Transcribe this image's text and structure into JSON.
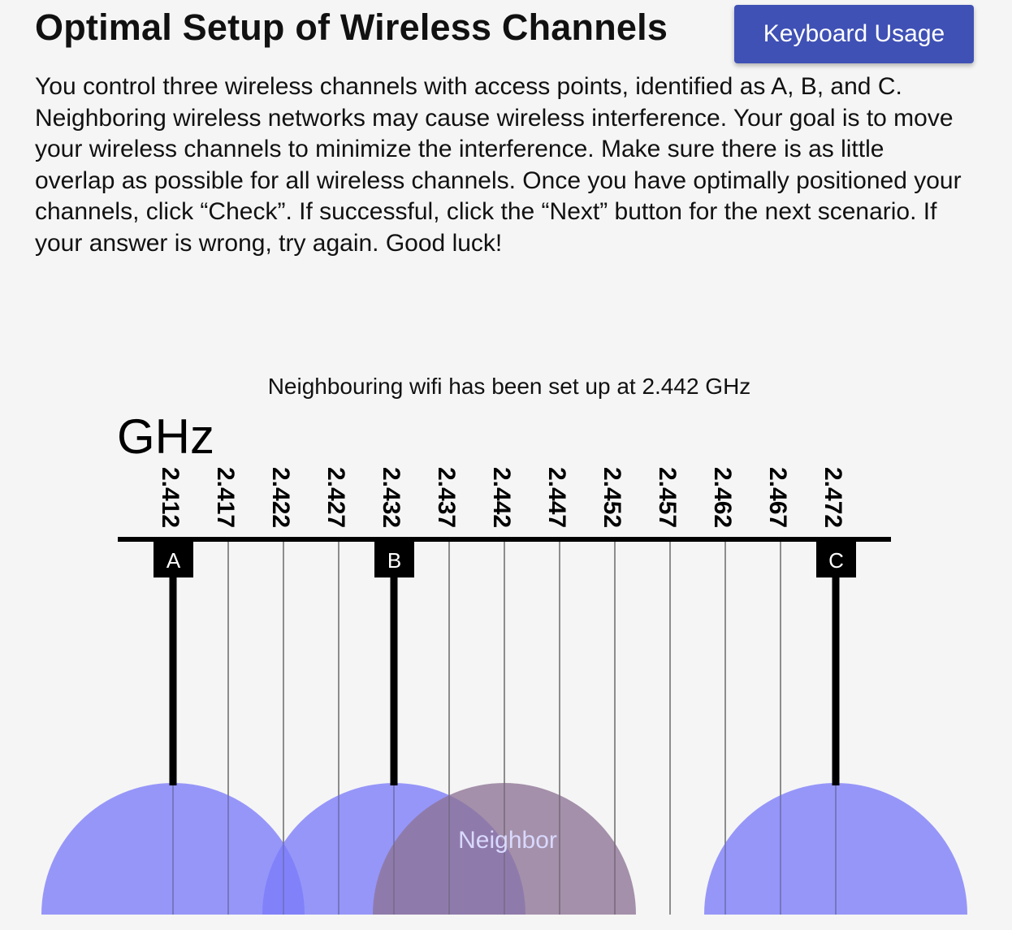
{
  "header": {
    "title": "Optimal Setup of Wireless Channels",
    "keyboard_button_label": "Keyboard Usage"
  },
  "instructions": "You control three wireless channels with access points, identified as A, B, and C. Neighboring wireless networks may cause wireless interference. Your goal is to move your wireless channels to minimize the interference. Make sure there is as little overlap as possible for all wireless channels. Once you have optimally positioned your channels, click “Check”. If successful, click the “Next” button for the next scenario. If your answer is wrong, try again. Good luck!",
  "status_message": "Neighbouring wifi has been set up at 2.442 GHz",
  "diagram": {
    "unit_label": "GHz",
    "frequencies": [
      "2.412",
      "2.417",
      "2.422",
      "2.427",
      "2.432",
      "2.437",
      "2.442",
      "2.447",
      "2.452",
      "2.457",
      "2.462",
      "2.467",
      "2.472"
    ],
    "channels": [
      {
        "label": "A",
        "frequency": "2.412"
      },
      {
        "label": "B",
        "frequency": "2.432"
      },
      {
        "label": "C",
        "frequency": "2.472"
      }
    ],
    "neighbor": {
      "label": "Neighbor",
      "frequency": "2.442"
    },
    "colors": {
      "channel_fill": "#7b7bfa",
      "neighbor_fill": "#8d7395",
      "axis": "#000000",
      "gridline": "#555555",
      "label_box": "#000000",
      "label_text": "#ffffff",
      "neighbor_text": "#d9d9ff"
    }
  }
}
